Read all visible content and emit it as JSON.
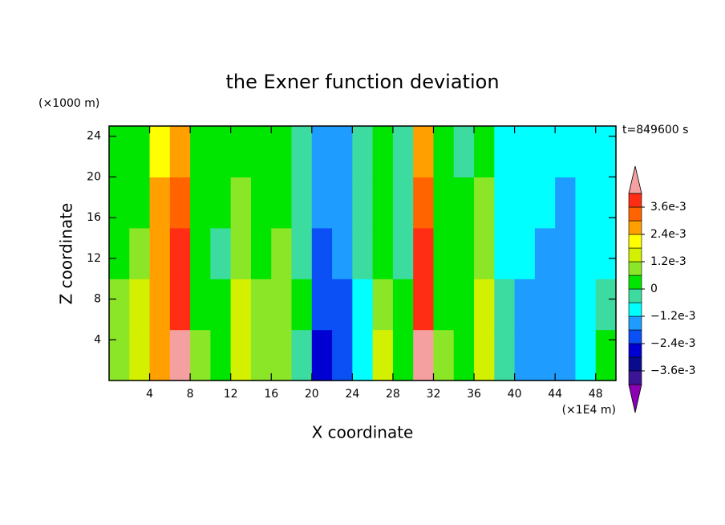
{
  "chart_data": {
    "type": "heatmap",
    "title": "the Exner function deviation",
    "x_label": "X coordinate",
    "y_label": "Z coordinate",
    "x_unit": "(×1E4 m)",
    "y_unit": "(×1000 m)",
    "time_label": "t=849600 s",
    "xlim": [
      0,
      50
    ],
    "ylim": [
      0,
      25
    ],
    "xticks": [
      4,
      8,
      12,
      16,
      20,
      24,
      28,
      32,
      36,
      40,
      44,
      48
    ],
    "yticks": [
      4,
      8,
      12,
      16,
      20,
      24
    ],
    "x": [
      1,
      3,
      5,
      7,
      9,
      11,
      13,
      15,
      17,
      19,
      21,
      23,
      25,
      27,
      29,
      31,
      33,
      35,
      37,
      39,
      41,
      43,
      45,
      47,
      49
    ],
    "y": [
      2.5,
      7.5,
      12.5,
      17.5,
      22.5
    ],
    "values": [
      [
        0.0009,
        0.0006,
        0.0003,
        0.0003,
        0.0003
      ],
      [
        0.0015,
        0.0012,
        0.0009,
        0.0003,
        0.0003
      ],
      [
        0.0027,
        0.0024,
        0.0027,
        0.0027,
        0.0021
      ],
      [
        0.0045,
        0.0039,
        0.0039,
        0.0033,
        0.0027
      ],
      [
        0.0009,
        0.0003,
        0.0003,
        0.0003,
        0.0003
      ],
      [
        0.0003,
        0.0003,
        -0.0003,
        0.0003,
        0.0003
      ],
      [
        0.0015,
        0.0015,
        0.0009,
        0.0009,
        0.0003
      ],
      [
        0.0009,
        0.0009,
        0.0003,
        0.0003,
        0.0003
      ],
      [
        0.0009,
        0.0009,
        0.0009,
        0.0003,
        0.0003
      ],
      [
        -0.0003,
        0.0003,
        -0.0003,
        -0.0003,
        -0.0003
      ],
      [
        -0.0027,
        -0.0021,
        -0.0021,
        -0.0015,
        -0.0015
      ],
      [
        -0.0021,
        -0.0021,
        -0.0015,
        -0.0015,
        -0.0015
      ],
      [
        -0.0009,
        -0.0009,
        -0.0003,
        -0.0003,
        -0.0003
      ],
      [
        0.0015,
        0.0009,
        0.0003,
        0.0003,
        0.0003
      ],
      [
        0.0003,
        0.0003,
        -0.0003,
        -0.0003,
        -0.0003
      ],
      [
        0.0045,
        0.0039,
        0.0039,
        0.0033,
        0.0027
      ],
      [
        0.0009,
        0.0003,
        0.0003,
        0.0003,
        0.0003
      ],
      [
        0.0003,
        0.0003,
        0.0003,
        0.0003,
        -0.0003
      ],
      [
        0.0015,
        0.0015,
        0.0009,
        0.0009,
        0.0003
      ],
      [
        -0.0003,
        -0.0003,
        -0.0009,
        -0.0009,
        -0.0009
      ],
      [
        -0.0015,
        -0.0015,
        -0.0009,
        -0.0009,
        -0.0009
      ],
      [
        -0.0015,
        -0.0015,
        -0.0015,
        -0.0009,
        -0.0009
      ],
      [
        -0.0015,
        -0.0015,
        -0.0015,
        -0.0015,
        -0.0009
      ],
      [
        -0.0009,
        -0.0009,
        -0.0009,
        -0.0009,
        -0.0009
      ],
      [
        0.0003,
        -0.0003,
        -0.0009,
        -0.0009,
        -0.0009
      ]
    ],
    "levels": [
      -0.0042,
      -0.0036,
      -0.003,
      -0.0024,
      -0.0018,
      -0.0012,
      -0.0006,
      0,
      0.0006,
      0.0012,
      0.0018,
      0.0024,
      0.003,
      0.0036,
      0.0042
    ],
    "colors": [
      "#3c1496",
      "#0a0a8c",
      "#0000d2",
      "#0a50f5",
      "#1e9cff",
      "#00ffff",
      "#3cdca0",
      "#00e600",
      "#8ce628",
      "#d2f000",
      "#ffff00",
      "#ffa000",
      "#ff6400",
      "#ff2d14"
    ],
    "under_color": "#8c00b4",
    "over_color": "#f5a0a0",
    "colorbar_ticks": [
      {
        "value": 0.0036,
        "label": "3.6e-3"
      },
      {
        "value": 0.0024,
        "label": "2.4e-3"
      },
      {
        "value": 0.0012,
        "label": "1.2e-3"
      },
      0,
      {
        "value": -0.0012,
        "label": "−1.2e-3"
      },
      {
        "value": -0.0024,
        "label": "−2.4e-3"
      },
      {
        "value": -0.0036,
        "label": "−3.6e-3"
      }
    ]
  }
}
